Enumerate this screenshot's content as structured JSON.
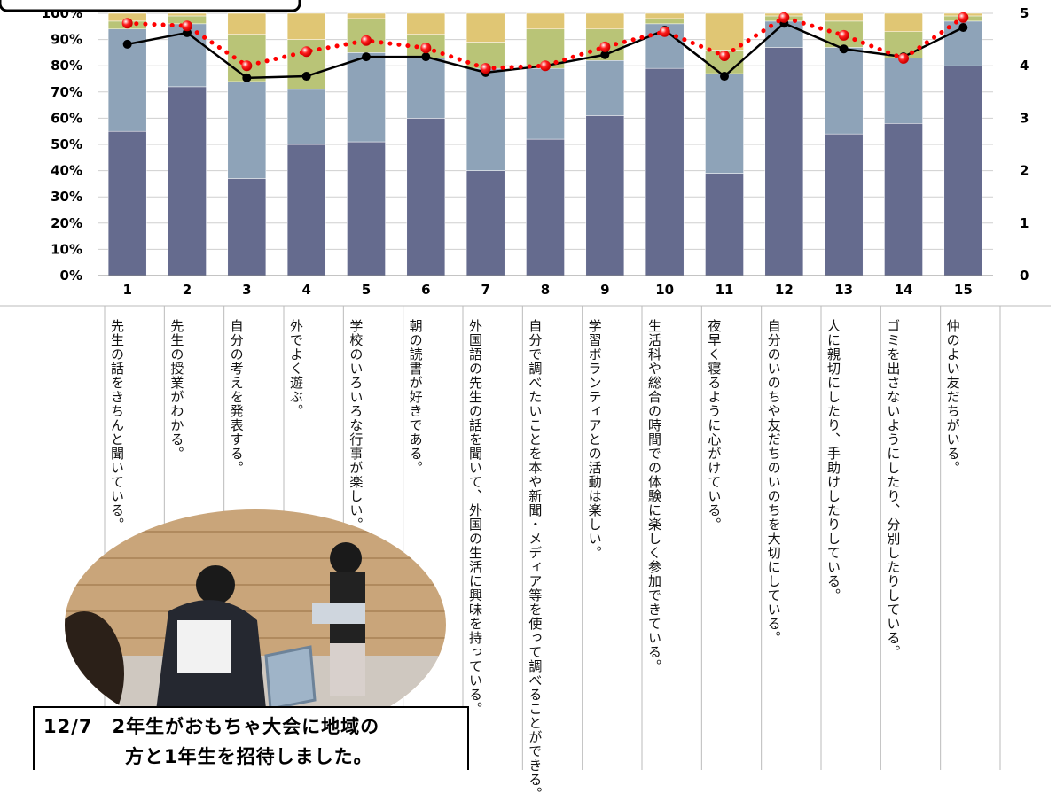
{
  "chart_data": {
    "type": "bar",
    "stacked": true,
    "categories": [
      "1",
      "2",
      "3",
      "4",
      "5",
      "6",
      "7",
      "8",
      "9",
      "10",
      "11",
      "12",
      "13",
      "14",
      "15"
    ],
    "series": [
      {
        "color": "#656b8e",
        "values": [
          55,
          72,
          37,
          50,
          51,
          60,
          40,
          52,
          61,
          79,
          39,
          87,
          54,
          58,
          80
        ]
      },
      {
        "color": "#8ea3b8",
        "values": [
          39,
          24,
          37,
          21,
          34,
          23,
          39,
          27,
          21,
          17,
          38,
          10,
          33,
          25,
          17
        ]
      },
      {
        "color": "#b9c477",
        "values": [
          3,
          3,
          18,
          19,
          13,
          9,
          10,
          15,
          12,
          2,
          9,
          2,
          10,
          10,
          2
        ]
      },
      {
        "color": "#e0c674",
        "values": [
          3,
          1,
          8,
          10,
          2,
          8,
          11,
          6,
          6,
          2,
          14,
          1,
          3,
          7,
          1
        ]
      },
      {
        "type": "line",
        "axis": "y2",
        "color": "#000000",
        "line_style": "solid",
        "values": [
          4.41,
          4.63,
          3.77,
          3.8,
          4.17,
          4.17,
          3.87,
          4.0,
          4.21,
          4.68,
          3.8,
          4.81,
          4.32,
          4.17,
          4.73
        ]
      },
      {
        "type": "line",
        "axis": "y2",
        "color": "#ff0000",
        "line_style": "dotted",
        "values": [
          4.81,
          4.76,
          4.0,
          4.27,
          4.48,
          4.34,
          3.95,
          4.0,
          4.36,
          4.65,
          4.19,
          4.92,
          4.58,
          4.14,
          4.92
        ]
      }
    ],
    "ylim": [
      0,
      100
    ],
    "yticks": [
      {
        "value": 0,
        "label": "0%"
      },
      {
        "value": 10,
        "label": "10%"
      },
      {
        "value": 20,
        "label": "20%"
      },
      {
        "value": 30,
        "label": "30%"
      },
      {
        "value": 40,
        "label": "40%"
      },
      {
        "value": 50,
        "label": "50%"
      },
      {
        "value": 60,
        "label": "60%"
      },
      {
        "value": 70,
        "label": "70%"
      },
      {
        "value": 80,
        "label": "80%"
      },
      {
        "value": 90,
        "label": "90%"
      },
      {
        "value": 100,
        "label": "100%"
      }
    ],
    "y2lim": [
      0,
      5
    ],
    "y2ticks": [
      0,
      1,
      2,
      3,
      4,
      5
    ],
    "grid": true
  },
  "statements": [
    "先生の話をきちんと聞いている。",
    "先生の授業がわかる。",
    "自分の考えを発表する。",
    "外でよく遊ぶ。",
    "学校のいろいろな行事が楽しい。",
    "朝の読書が好きである。",
    "外国語の先生の話を聞いて、外国の生活に興味を持っている。",
    "自分で調べたいことを本や新聞・メディア等を使って調べることができる。",
    "学習ボランティアとの活動は楽しい。",
    "生活科や総合の時間での体験に楽しく参加できている。",
    "夜早く寝るように心がけている。",
    "自分のいのちや友だちのいのちを大切にしている。",
    "人に親切にしたり、手助けしたりしている。",
    "ゴミを出さないようにしたり、分別したりしている。",
    "仲のよい友だちがいる。"
  ],
  "caption": [
    "12/7　2年生がおもちゃ大会に地域の",
    "方と1年生を招待しました。"
  ]
}
